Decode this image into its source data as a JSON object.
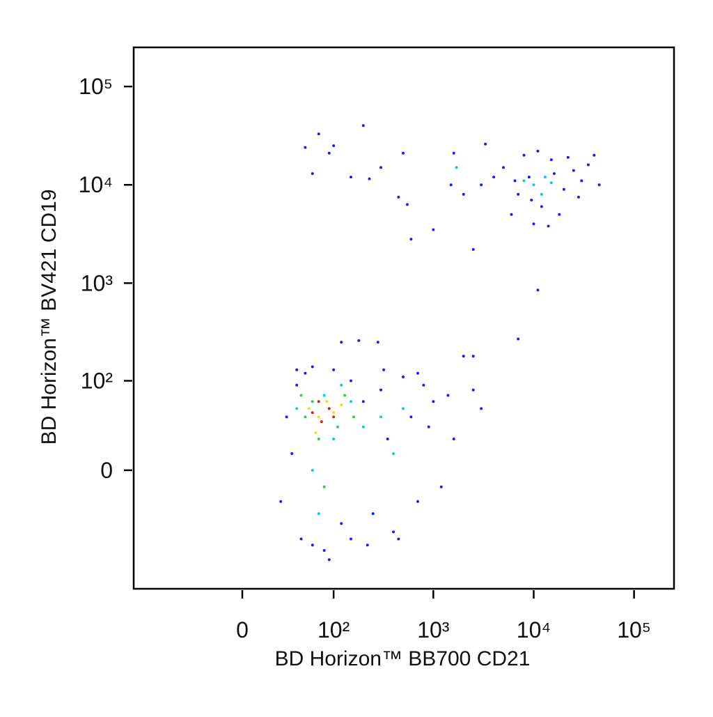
{
  "chart_data": {
    "type": "scatter",
    "x_label": "BD Horizon™ BB700 CD21",
    "y_label": "BD Horizon™ BV421 CD19",
    "xlim": [
      -150,
      250000
    ],
    "ylim": [
      -200,
      250000
    ],
    "xticks": [
      0,
      {
        "value": 100,
        "label": "10²"
      },
      {
        "value": 1000,
        "label": "10³"
      },
      {
        "value": 10000,
        "label": "10⁴"
      },
      {
        "value": 100000,
        "label": "10⁵"
      }
    ],
    "yticks": [
      0,
      {
        "value": 100,
        "label": "10²"
      },
      {
        "value": 1000,
        "label": "10³"
      },
      {
        "value": 10000,
        "label": "10⁴"
      },
      {
        "value": 100000,
        "label": "10⁵"
      }
    ],
    "series": [
      {
        "color": "#1a1aff",
        "x": [
          30,
          25,
          40,
          50,
          35,
          45,
          60,
          80,
          100,
          120,
          150,
          200,
          250,
          300,
          350,
          400,
          500,
          600,
          700,
          800,
          900,
          1000,
          1200,
          1400,
          1600,
          2500,
          3000,
          2000,
          2500,
          180,
          120,
          280,
          90,
          60,
          40,
          220,
          450,
          320,
          150,
          700,
          3000,
          5000,
          7000,
          9000,
          12000,
          15000,
          20000,
          25000,
          30000,
          40000,
          45000,
          8000,
          6000,
          10000,
          18000,
          4000,
          2000,
          35000,
          11000,
          14000,
          22000,
          6500,
          9500,
          28000,
          16000,
          50,
          70,
          200,
          100,
          60,
          150,
          300,
          500,
          450,
          550,
          600,
          1000,
          1500,
          2500,
          11000,
          7000,
          1600,
          90,
          3300,
          230
        ],
        "y": [
          40,
          -20,
          90,
          120,
          10,
          -60,
          140,
          -80,
          130,
          -40,
          100,
          60,
          -30,
          80,
          20,
          -50,
          110,
          40,
          -20,
          90,
          30,
          60,
          -10,
          70,
          20,
          80,
          50,
          180,
          180,
          260,
          250,
          250,
          -100,
          -70,
          130,
          -70,
          -60,
          130,
          -60,
          120,
          10000,
          15000,
          8000,
          12000,
          6000,
          18000,
          9000,
          14000,
          11000,
          20000,
          10000,
          20000,
          5000,
          4000,
          5000,
          12000,
          8000,
          16000,
          22000,
          3800,
          19000,
          11000,
          7000,
          7500,
          13000,
          24000,
          33000,
          40000,
          25000,
          13000,
          12000,
          15000,
          21000,
          7500,
          6300,
          2800,
          3500,
          10000,
          2200,
          850,
          270,
          21000,
          21000,
          26000,
          11500
        ]
      },
      {
        "color": "#00d0e0",
        "x": [
          40,
          60,
          80,
          100,
          150,
          200,
          300,
          120,
          70,
          400,
          500,
          10000,
          13000,
          12000,
          8000,
          15000,
          1700
        ],
        "y": [
          50,
          0,
          70,
          20,
          60,
          30,
          40,
          90,
          -30,
          10,
          50,
          10000,
          12000,
          8000,
          11000,
          10500,
          15000
        ]
      },
      {
        "color": "#30d040",
        "x": [
          50,
          60,
          70,
          90,
          110,
          130,
          80,
          160,
          45
        ],
        "y": [
          40,
          60,
          20,
          50,
          30,
          70,
          -10,
          40,
          70
        ]
      },
      {
        "color": "#f0e020",
        "x": [
          55,
          70,
          85,
          100,
          65,
          120
        ],
        "y": [
          50,
          40,
          60,
          45,
          25,
          55
        ]
      },
      {
        "color": "#e02010",
        "x": [
          60,
          75,
          90,
          70,
          100
        ],
        "y": [
          45,
          35,
          50,
          60,
          40
        ]
      }
    ]
  }
}
